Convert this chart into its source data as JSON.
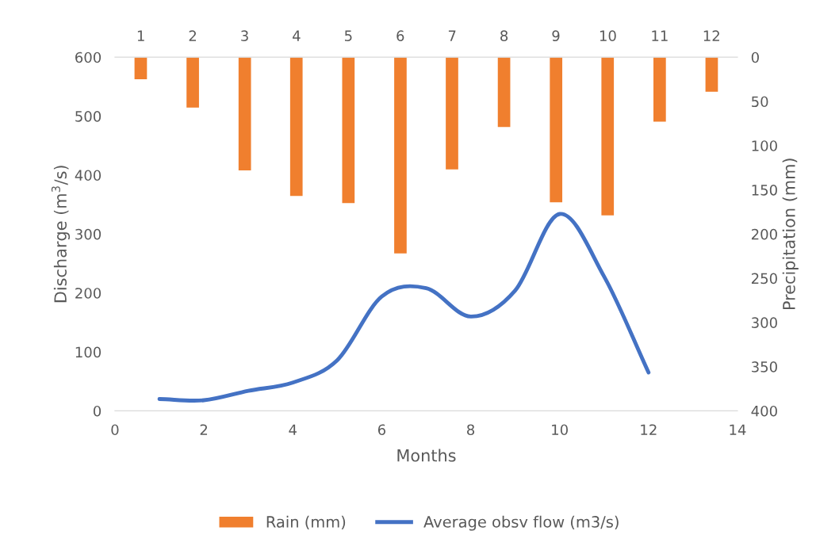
{
  "chart_data": {
    "type": "line",
    "xlabel": "Months",
    "ylabel": "Discharge (m$^{3}$/s)",
    "y2label": "Precipitation (mm)",
    "xlim": [
      0,
      14
    ],
    "xticks": [
      0,
      2,
      4,
      6,
      8,
      10,
      12,
      14
    ],
    "x2lim": [
      0.5,
      12.5
    ],
    "x2ticks": [
      1,
      2,
      3,
      4,
      5,
      6,
      7,
      8,
      9,
      10,
      11,
      12
    ],
    "ylim": [
      0,
      600
    ],
    "yticks": [
      0,
      100,
      200,
      300,
      400,
      500,
      600
    ],
    "y2lim": [
      400,
      0
    ],
    "y2ticks": [
      0,
      50,
      100,
      150,
      200,
      250,
      300,
      350,
      400
    ],
    "series": [
      {
        "name": "Rain (mm)",
        "type": "bar",
        "axis": "y2",
        "color": "#f07f2e",
        "x": [
          0.58,
          1.75,
          2.92,
          4.08,
          5.25,
          6.42,
          7.58,
          8.75,
          9.92,
          11.08,
          12.25,
          13.42
        ],
        "values": [
          25,
          57,
          128,
          157,
          165,
          222,
          127,
          79,
          164,
          179,
          73,
          39
        ]
      },
      {
        "name": "Average obsv flow (m3/s)",
        "color": "#4472c4",
        "x": [
          1,
          2,
          3,
          4,
          5,
          6,
          7,
          8,
          9,
          10,
          11,
          12
        ],
        "values": [
          20,
          18,
          34,
          48,
          86,
          194,
          208,
          160,
          204,
          334,
          228,
          65
        ]
      }
    ],
    "legend": "bottom",
    "grid": false
  }
}
